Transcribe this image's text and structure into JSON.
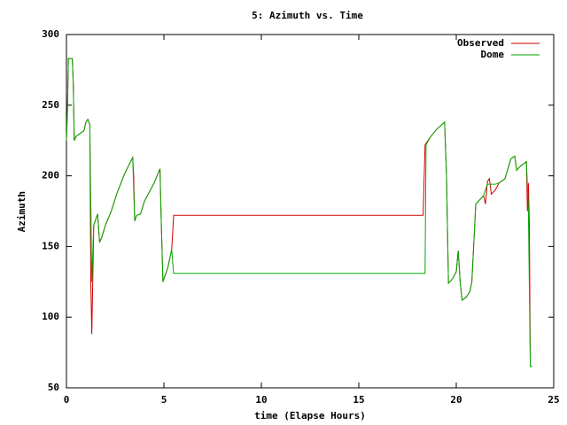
{
  "chart_data": {
    "type": "line",
    "title": "5: Azimuth vs. Time",
    "x_label": "time (Elapse Hours)",
    "y_label": "Azimuth",
    "xlim": [
      0,
      25
    ],
    "xticks": [
      0,
      5,
      10,
      15,
      20,
      25
    ],
    "ylim": [
      50,
      300
    ],
    "yticks": [
      50,
      100,
      150,
      200,
      250,
      300
    ],
    "grid": false,
    "legend": "top-right",
    "series": [
      {
        "name": "Observed",
        "color": "#cc0000",
        "x": [
          0,
          0.05,
          0.1,
          0.3,
          0.35,
          0.4,
          0.5,
          0.9,
          1.0,
          1.1,
          1.2,
          1.25,
          1.3,
          1.35,
          1.4,
          1.6,
          1.7,
          1.8,
          2.0,
          2.3,
          2.6,
          3.0,
          3.4,
          3.45,
          3.5,
          3.6,
          3.8,
          4.0,
          4.5,
          4.8,
          4.85,
          4.9,
          4.95,
          5.2,
          5.4,
          5.5,
          18.3,
          18.4,
          18.7,
          19.0,
          19.4,
          19.5,
          19.6,
          19.8,
          20.0,
          20.1,
          20.2,
          20.3,
          20.5,
          20.7,
          20.8,
          21.0,
          21.2,
          21.4,
          21.5,
          21.6,
          21.7,
          21.8,
          22.0,
          22.2,
          22.5,
          22.8,
          23.0,
          23.1,
          23.3,
          23.5,
          23.6,
          23.65,
          23.7,
          23.75,
          23.8,
          23.9
        ],
        "values": [
          225,
          245,
          283,
          283,
          265,
          225,
          228,
          232,
          238,
          240,
          236,
          125,
          88,
          125,
          165,
          173,
          153,
          156,
          165,
          175,
          188,
          202,
          213,
          200,
          168,
          172,
          173,
          182,
          195,
          205,
          175,
          150,
          125,
          135,
          148,
          172,
          172,
          222,
          228,
          233,
          238,
          200,
          124,
          127,
          132,
          147,
          125,
          112,
          114,
          118,
          125,
          180,
          183,
          186,
          180,
          196,
          198,
          187,
          190,
          195,
          198,
          212,
          214,
          204,
          207,
          209,
          210,
          175,
          195,
          165,
          65,
          65
        ]
      },
      {
        "name": "Dome",
        "color": "#00aa00",
        "x": [
          0,
          0.05,
          0.1,
          0.3,
          0.35,
          0.4,
          0.5,
          0.9,
          1.0,
          1.1,
          1.2,
          1.3,
          1.4,
          1.6,
          1.7,
          1.8,
          2.0,
          2.3,
          2.6,
          3.0,
          3.4,
          3.5,
          3.6,
          3.8,
          4.0,
          4.5,
          4.8,
          4.85,
          4.9,
          4.95,
          5.2,
          5.4,
          5.5,
          18.4,
          18.45,
          18.7,
          19.0,
          19.4,
          19.5,
          19.6,
          19.8,
          20.0,
          20.1,
          20.2,
          20.3,
          20.5,
          20.7,
          20.8,
          21.0,
          21.2,
          21.4,
          21.6,
          21.7,
          21.8,
          22.0,
          22.2,
          22.5,
          22.8,
          23.0,
          23.1,
          23.3,
          23.5,
          23.6,
          23.7,
          23.8,
          23.9
        ],
        "values": [
          225,
          245,
          283,
          283,
          265,
          225,
          228,
          232,
          238,
          240,
          236,
          125,
          165,
          173,
          153,
          156,
          165,
          175,
          188,
          202,
          213,
          168,
          172,
          173,
          182,
          195,
          205,
          175,
          150,
          125,
          135,
          148,
          131,
          131,
          222,
          228,
          233,
          238,
          200,
          124,
          127,
          132,
          147,
          125,
          112,
          114,
          118,
          125,
          180,
          183,
          186,
          194,
          194,
          194,
          194,
          195,
          198,
          212,
          214,
          204,
          207,
          209,
          210,
          175,
          65,
          65
        ]
      }
    ]
  }
}
